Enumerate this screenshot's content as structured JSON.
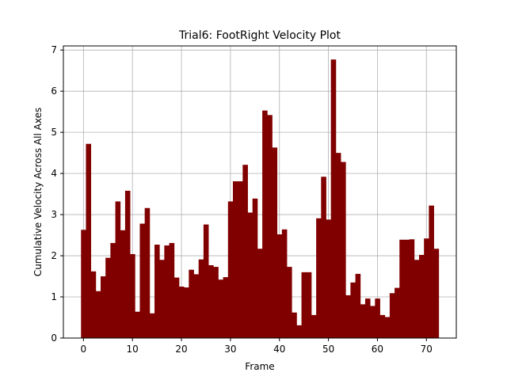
{
  "chart_data": {
    "type": "bar",
    "title": "Trial6: FootRight Velocity Plot",
    "xlabel": "Frame",
    "ylabel": "Cumulative Velocity Across All Axes",
    "xlim": [
      -4.1,
      76.1
    ],
    "ylim": [
      0,
      7.1
    ],
    "xticks": [
      0,
      10,
      20,
      30,
      40,
      50,
      60,
      70
    ],
    "yticks": [
      0,
      1,
      2,
      3,
      4,
      5,
      6,
      7
    ],
    "grid": true,
    "bar_color": "#800000",
    "x": [
      0,
      1,
      2,
      3,
      4,
      5,
      6,
      7,
      8,
      9,
      10,
      11,
      12,
      13,
      14,
      15,
      16,
      17,
      18,
      19,
      20,
      21,
      22,
      23,
      24,
      25,
      26,
      27,
      28,
      29,
      30,
      31,
      32,
      33,
      34,
      35,
      36,
      37,
      38,
      39,
      40,
      41,
      42,
      43,
      44,
      45,
      46,
      47,
      48,
      49,
      50,
      51,
      52,
      53,
      54,
      55,
      56,
      57,
      58,
      59,
      60,
      61,
      62,
      63,
      64,
      65,
      66,
      67,
      68,
      69,
      70,
      71,
      72
    ],
    "values": [
      2.63,
      4.72,
      1.62,
      1.14,
      1.5,
      1.95,
      2.31,
      3.32,
      2.62,
      3.58,
      2.04,
      0.64,
      2.78,
      3.16,
      0.6,
      2.27,
      1.9,
      2.25,
      2.31,
      1.47,
      1.25,
      1.23,
      1.66,
      1.55,
      1.91,
      2.76,
      1.77,
      1.73,
      1.42,
      1.48,
      3.32,
      3.81,
      3.81,
      4.21,
      3.05,
      3.39,
      2.17,
      5.53,
      5.42,
      4.63,
      2.52,
      2.64,
      1.73,
      0.62,
      0.31,
      1.6,
      1.6,
      0.56,
      2.91,
      3.92,
      2.88,
      6.77,
      4.5,
      4.28,
      1.04,
      1.35,
      1.56,
      0.82,
      0.96,
      0.78,
      0.96,
      0.56,
      0.51,
      1.09,
      1.22,
      2.39,
      2.39,
      2.4,
      1.9,
      2.02,
      2.42,
      3.22,
      2.17
    ]
  }
}
